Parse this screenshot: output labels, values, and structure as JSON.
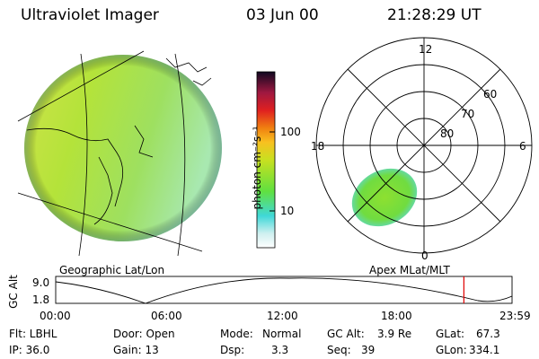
{
  "header": {
    "instrument": "Ultraviolet Imager",
    "date": "03 Jun 00",
    "time": "21:28:29 UT"
  },
  "colorbar": {
    "unit_label": "photon cm⁻²s⁻¹",
    "ticks": [
      "100",
      "10"
    ]
  },
  "geo_panel": {
    "label": "Geographic Lat/Lon"
  },
  "polar_panel": {
    "label": "Apex MLat/MLT",
    "mlt_labels": [
      "12",
      "18",
      "6",
      "0"
    ],
    "lat_labels": [
      "60",
      "70",
      "80"
    ]
  },
  "altitude_plot": {
    "ylabel": "GC Alt",
    "yticks": [
      "9.0",
      "1.8"
    ],
    "xticks": [
      "00:00",
      "06:00",
      "12:00",
      "18:00",
      "23:59"
    ],
    "marker_time": "21:28",
    "marker_color": "#e00000"
  },
  "info": {
    "flt": "Flt: LBHL",
    "ip": "IP: 36.0",
    "door": "Door: Open",
    "gain": "Gain: 13",
    "mode_label": "Mode:",
    "mode_value": "Normal",
    "dsp_label": "Dsp:",
    "dsp_value": "3.3",
    "gcalt_label": "GC Alt:",
    "gcalt_value": "3.9 Re",
    "seq_label": "Seq:",
    "seq_value": "39",
    "glat_label": "GLat:",
    "glat_value": "67.3",
    "glon_label": "GLon:",
    "glon_value": "334.1"
  }
}
